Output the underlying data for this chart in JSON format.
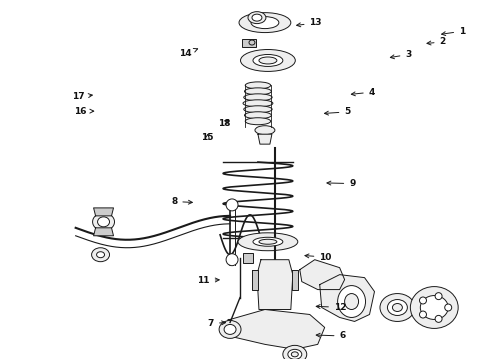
{
  "background_color": "#ffffff",
  "fig_width": 4.9,
  "fig_height": 3.6,
  "dpi": 100,
  "line_color": "#1a1a1a",
  "fill_light": "#eeeeee",
  "fill_mid": "#cccccc",
  "label_positions": {
    "1": {
      "txt": [
        0.945,
        0.085
      ],
      "arr": [
        0.895,
        0.095
      ]
    },
    "2": {
      "txt": [
        0.905,
        0.115
      ],
      "arr": [
        0.865,
        0.12
      ]
    },
    "3": {
      "txt": [
        0.835,
        0.15
      ],
      "arr": [
        0.79,
        0.16
      ]
    },
    "4": {
      "txt": [
        0.76,
        0.255
      ],
      "arr": [
        0.71,
        0.262
      ]
    },
    "5": {
      "txt": [
        0.71,
        0.31
      ],
      "arr": [
        0.655,
        0.315
      ]
    },
    "6": {
      "txt": [
        0.7,
        0.935
      ],
      "arr": [
        0.638,
        0.932
      ]
    },
    "7": {
      "txt": [
        0.43,
        0.9
      ],
      "arr": [
        0.468,
        0.897
      ]
    },
    "8": {
      "txt": [
        0.355,
        0.56
      ],
      "arr": [
        0.4,
        0.563
      ]
    },
    "9": {
      "txt": [
        0.72,
        0.51
      ],
      "arr": [
        0.66,
        0.508
      ]
    },
    "10": {
      "txt": [
        0.665,
        0.715
      ],
      "arr": [
        0.615,
        0.71
      ]
    },
    "11": {
      "txt": [
        0.415,
        0.78
      ],
      "arr": [
        0.455,
        0.778
      ]
    },
    "12": {
      "txt": [
        0.695,
        0.855
      ],
      "arr": [
        0.638,
        0.852
      ]
    },
    "13": {
      "txt": [
        0.645,
        0.062
      ],
      "arr": [
        0.598,
        0.07
      ]
    },
    "14": {
      "txt": [
        0.378,
        0.148
      ],
      "arr": [
        0.405,
        0.133
      ]
    },
    "15": {
      "txt": [
        0.423,
        0.382
      ],
      "arr": [
        0.425,
        0.362
      ]
    },
    "16": {
      "txt": [
        0.163,
        0.308
      ],
      "arr": [
        0.198,
        0.308
      ]
    },
    "17": {
      "txt": [
        0.158,
        0.268
      ],
      "arr": [
        0.195,
        0.262
      ]
    },
    "18": {
      "txt": [
        0.458,
        0.342
      ],
      "arr": [
        0.472,
        0.325
      ]
    }
  }
}
